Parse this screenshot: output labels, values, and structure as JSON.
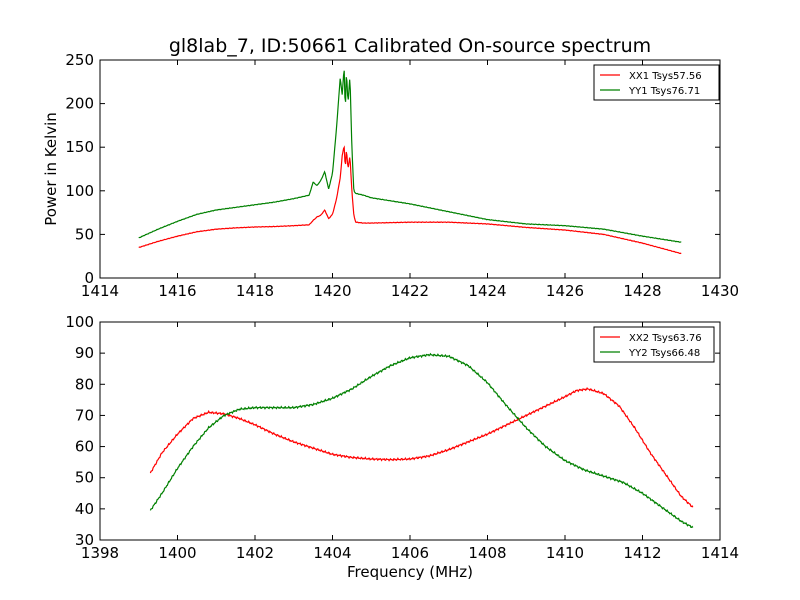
{
  "figure": {
    "title": "gl8lab_7, ID:50661 Calibrated On-source spectrum"
  },
  "chart_data": [
    {
      "type": "line",
      "title": "gl8lab_7, ID:50661 Calibrated On-source spectrum",
      "xlabel": "",
      "ylabel": "Power in Kelvin",
      "xlim": [
        1414,
        1430
      ],
      "ylim": [
        0,
        250
      ],
      "xticks": [
        1414,
        1416,
        1418,
        1420,
        1422,
        1424,
        1426,
        1428,
        1430
      ],
      "yticks": [
        0,
        50,
        100,
        150,
        200,
        250
      ],
      "grid": false,
      "legend": "top-right",
      "series": [
        {
          "name": "XX1 Tsys57.56",
          "color": "#ff0000",
          "x": [
            1415.0,
            1415.5,
            1416.0,
            1416.5,
            1417.0,
            1417.5,
            1418.0,
            1418.5,
            1419.0,
            1419.4,
            1419.5,
            1419.6,
            1419.7,
            1419.8,
            1419.9,
            1420.0,
            1420.1,
            1420.2,
            1420.25,
            1420.3,
            1420.33,
            1420.36,
            1420.4,
            1420.45,
            1420.5,
            1420.55,
            1420.6,
            1420.8,
            1421.0,
            1422.0,
            1423.0,
            1424.0,
            1425.0,
            1426.0,
            1427.0,
            1428.0,
            1429.0
          ],
          "y": [
            35,
            42,
            48,
            53,
            56,
            57.5,
            58.5,
            59,
            60,
            61,
            66,
            70,
            72,
            78,
            68,
            73,
            90,
            115,
            140,
            152,
            125,
            148,
            125,
            140,
            100,
            72,
            64,
            63,
            63,
            64,
            64,
            62,
            58,
            55,
            50,
            40,
            28
          ]
        },
        {
          "name": "YY1 Tsys76.71",
          "color": "#008000",
          "x": [
            1415.0,
            1415.5,
            1416.0,
            1416.5,
            1417.0,
            1417.5,
            1418.0,
            1418.5,
            1419.0,
            1419.4,
            1419.5,
            1419.6,
            1419.7,
            1419.8,
            1419.9,
            1420.0,
            1420.1,
            1420.2,
            1420.25,
            1420.3,
            1420.33,
            1420.36,
            1420.4,
            1420.45,
            1420.5,
            1420.55,
            1420.6,
            1420.8,
            1421.0,
            1422.0,
            1423.0,
            1424.0,
            1425.0,
            1426.0,
            1427.0,
            1428.0,
            1429.0
          ],
          "y": [
            46,
            56,
            65,
            73,
            78,
            81,
            84,
            87,
            91,
            95,
            110,
            106,
            112,
            122,
            102,
            120,
            170,
            230,
            210,
            242,
            190,
            238,
            200,
            232,
            150,
            100,
            97,
            95,
            92,
            85,
            76,
            67,
            62,
            60,
            56,
            48,
            41
          ]
        }
      ]
    },
    {
      "type": "line",
      "title": "",
      "xlabel": "Frequency (MHz)",
      "ylabel": "",
      "xlim": [
        1398,
        1414
      ],
      "ylim": [
        30,
        100
      ],
      "xticks": [
        1398,
        1400,
        1402,
        1404,
        1406,
        1408,
        1410,
        1412,
        1414
      ],
      "yticks": [
        30,
        40,
        50,
        60,
        70,
        80,
        90,
        100
      ],
      "grid": false,
      "legend": "top-right",
      "series": [
        {
          "name": "XX2 Tsys63.76",
          "color": "#ff0000",
          "x": [
            1399.3,
            1399.6,
            1400.0,
            1400.4,
            1400.8,
            1401.2,
            1401.6,
            1402.0,
            1402.5,
            1403.0,
            1403.5,
            1404.0,
            1404.5,
            1405.0,
            1405.5,
            1406.0,
            1406.5,
            1407.0,
            1407.5,
            1408.0,
            1408.5,
            1409.0,
            1409.5,
            1410.0,
            1410.3,
            1410.6,
            1411.0,
            1411.4,
            1411.8,
            1412.2,
            1412.6,
            1413.0,
            1413.3
          ],
          "y": [
            51.5,
            58,
            64,
            69,
            71,
            70.5,
            69,
            67,
            64,
            61.5,
            59.5,
            57.5,
            56.5,
            56,
            55.8,
            56,
            57,
            59,
            61.5,
            64,
            67,
            70,
            73,
            76,
            78,
            78.5,
            77,
            73,
            66,
            58,
            51,
            44,
            40.5
          ]
        },
        {
          "name": "YY2 Tsys66.48",
          "color": "#008000",
          "x": [
            1399.3,
            1399.6,
            1400.0,
            1400.4,
            1400.8,
            1401.2,
            1401.6,
            1402.0,
            1402.5,
            1403.0,
            1403.5,
            1404.0,
            1404.5,
            1405.0,
            1405.5,
            1406.0,
            1406.5,
            1407.0,
            1407.5,
            1408.0,
            1408.5,
            1409.0,
            1409.5,
            1410.0,
            1410.5,
            1411.0,
            1411.5,
            1412.0,
            1412.5,
            1413.0,
            1413.3
          ],
          "y": [
            39.5,
            45,
            53,
            60,
            66,
            70,
            72,
            72.5,
            72.5,
            72.5,
            73.5,
            75.5,
            78.5,
            82.5,
            86,
            88.5,
            89.5,
            89,
            86,
            80.5,
            73,
            66,
            60,
            55.5,
            52.5,
            50.5,
            48.5,
            45,
            40.5,
            36,
            34
          ]
        }
      ]
    }
  ]
}
